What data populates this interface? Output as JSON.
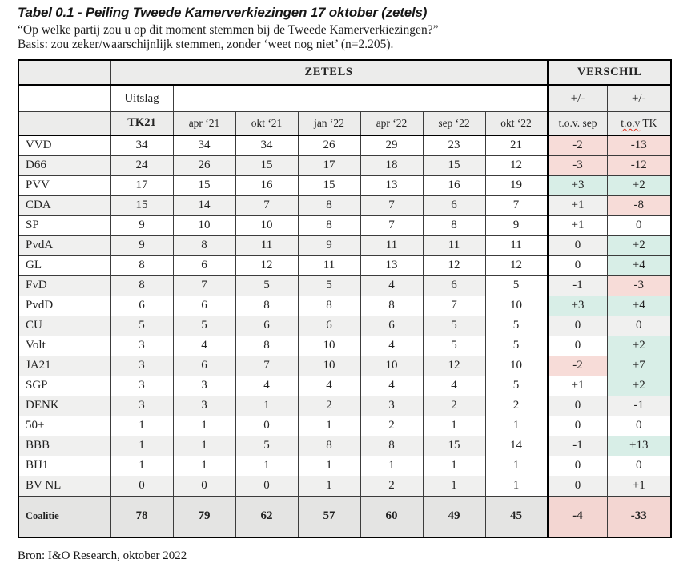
{
  "title": "Tabel 0.1 - Peiling Tweede Kamerverkiezingen 17 oktober (zetels)",
  "subtitle": "“Op welke partij zou u op dit moment stemmen bij de Tweede Kamerverkiezingen?”",
  "basis": "Basis: zou zeker/waarschijnlijk stemmen, zonder ‘weet nog niet’ (n=2.205).",
  "source": "Bron: I&O Research, oktober 2022",
  "colors": {
    "positive_bg": "#d8eee7",
    "negative_bg": "#f7dcd8",
    "negative_total_bg": "#f3d6d2",
    "header_bg": "#ececeb",
    "alt_row_bg": "#f0f0ef",
    "total_row_bg": "#e4e4e3",
    "spellcheck_underline": "#e0321f"
  },
  "table": {
    "group_headers": {
      "zetels": "ZETELS",
      "verschil": "VERSCHIL"
    },
    "uitslag_label": "Uitslag",
    "plusminus": "+/-",
    "columns": [
      "TK21",
      "apr ‘21",
      "okt ‘21",
      "jan ‘22",
      "apr ‘22",
      "sep ‘22",
      "okt ‘22"
    ],
    "diff_headers": {
      "sep": "t.o.v. sep",
      "tk_main": "t.o.v",
      "tk_rest": "TK"
    },
    "rows": [
      {
        "party": "VVD",
        "values": [
          34,
          34,
          34,
          26,
          29,
          23,
          21
        ],
        "diff_sep": "-2",
        "diff_sep_tone": "neg",
        "diff_tk": "-13",
        "diff_tk_tone": "neg"
      },
      {
        "party": "D66",
        "values": [
          24,
          26,
          15,
          17,
          18,
          15,
          12
        ],
        "diff_sep": "-3",
        "diff_sep_tone": "neg",
        "diff_tk": "-12",
        "diff_tk_tone": "neg"
      },
      {
        "party": "PVV",
        "values": [
          17,
          15,
          16,
          15,
          13,
          16,
          19
        ],
        "diff_sep": "+3",
        "diff_sep_tone": "pos",
        "diff_tk": "+2",
        "diff_tk_tone": "pos"
      },
      {
        "party": "CDA",
        "values": [
          15,
          14,
          7,
          8,
          7,
          6,
          7
        ],
        "diff_sep": "+1",
        "diff_sep_tone": "plain",
        "diff_tk": "-8",
        "diff_tk_tone": "neg"
      },
      {
        "party": "SP",
        "values": [
          9,
          10,
          10,
          8,
          7,
          8,
          9
        ],
        "diff_sep": "+1",
        "diff_sep_tone": "plain",
        "diff_tk": "0",
        "diff_tk_tone": "plain"
      },
      {
        "party": "PvdA",
        "values": [
          9,
          8,
          11,
          9,
          11,
          11,
          11
        ],
        "diff_sep": "0",
        "diff_sep_tone": "plain",
        "diff_tk": "+2",
        "diff_tk_tone": "pos"
      },
      {
        "party": "GL",
        "values": [
          8,
          6,
          12,
          11,
          13,
          12,
          12
        ],
        "diff_sep": "0",
        "diff_sep_tone": "plain",
        "diff_tk": "+4",
        "diff_tk_tone": "pos"
      },
      {
        "party": "FvD",
        "values": [
          8,
          7,
          5,
          5,
          4,
          6,
          5
        ],
        "diff_sep": "-1",
        "diff_sep_tone": "plain",
        "diff_tk": "-3",
        "diff_tk_tone": "neg"
      },
      {
        "party": "PvdD",
        "values": [
          6,
          6,
          8,
          8,
          8,
          7,
          10
        ],
        "diff_sep": "+3",
        "diff_sep_tone": "pos",
        "diff_tk": "+4",
        "diff_tk_tone": "pos"
      },
      {
        "party": "CU",
        "values": [
          5,
          5,
          6,
          6,
          6,
          5,
          5
        ],
        "diff_sep": "0",
        "diff_sep_tone": "plain",
        "diff_tk": "0",
        "diff_tk_tone": "plain"
      },
      {
        "party": "Volt",
        "values": [
          3,
          4,
          8,
          10,
          4,
          5,
          5
        ],
        "diff_sep": "0",
        "diff_sep_tone": "plain",
        "diff_tk": "+2",
        "diff_tk_tone": "pos"
      },
      {
        "party": "JA21",
        "values": [
          3,
          6,
          7,
          10,
          10,
          12,
          10
        ],
        "diff_sep": "-2",
        "diff_sep_tone": "neg",
        "diff_tk": "+7",
        "diff_tk_tone": "pos"
      },
      {
        "party": "SGP",
        "values": [
          3,
          3,
          4,
          4,
          4,
          4,
          5
        ],
        "diff_sep": "+1",
        "diff_sep_tone": "plain",
        "diff_tk": "+2",
        "diff_tk_tone": "pos"
      },
      {
        "party": "DENK",
        "values": [
          3,
          3,
          1,
          2,
          3,
          2,
          2
        ],
        "diff_sep": "0",
        "diff_sep_tone": "plain",
        "diff_tk": "-1",
        "diff_tk_tone": "plain"
      },
      {
        "party": "50+",
        "values": [
          1,
          1,
          0,
          1,
          2,
          1,
          1
        ],
        "diff_sep": "0",
        "diff_sep_tone": "plain",
        "diff_tk": "0",
        "diff_tk_tone": "plain"
      },
      {
        "party": "BBB",
        "values": [
          1,
          1,
          5,
          8,
          8,
          15,
          14
        ],
        "diff_sep": "-1",
        "diff_sep_tone": "plain",
        "diff_tk": "+13",
        "diff_tk_tone": "pos"
      },
      {
        "party": "BIJ1",
        "values": [
          1,
          1,
          1,
          1,
          1,
          1,
          1
        ],
        "diff_sep": "0",
        "diff_sep_tone": "plain",
        "diff_tk": "0",
        "diff_tk_tone": "plain"
      },
      {
        "party": "BV NL",
        "values": [
          0,
          0,
          0,
          1,
          2,
          1,
          1
        ],
        "diff_sep": "0",
        "diff_sep_tone": "plain",
        "diff_tk": "+1",
        "diff_tk_tone": "plain"
      }
    ],
    "total_row": {
      "party": "Coalitie",
      "values": [
        78,
        79,
        62,
        57,
        60,
        49,
        45
      ],
      "diff_sep": "-4",
      "diff_sep_tone": "neg",
      "diff_tk": "-33",
      "diff_tk_tone": "neg"
    }
  }
}
